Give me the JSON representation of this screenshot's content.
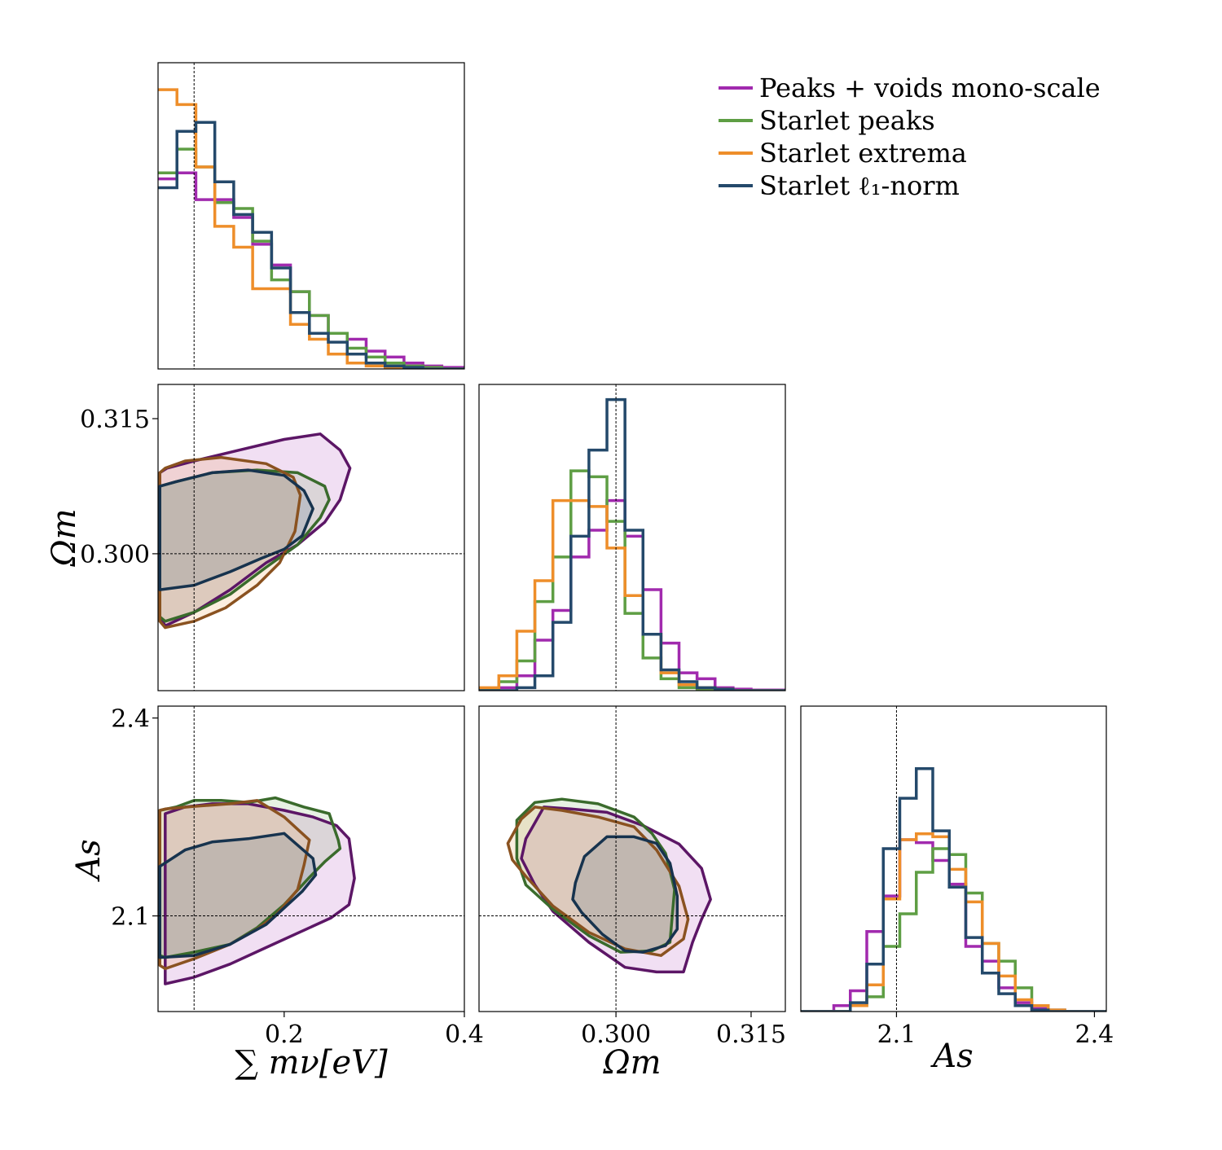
{
  "legend": {
    "items": [
      {
        "label": "Peaks + voids mono-scale",
        "color": "#a12aae"
      },
      {
        "label": "Starlet peaks",
        "color": "#5e9e44"
      },
      {
        "label": "Starlet extrema",
        "color": "#ee8e2a"
      },
      {
        "label": "Starlet ℓ₁-norm",
        "color": "#24496b"
      }
    ]
  },
  "chart_data": {
    "type": "corner",
    "axes": {
      "mnu": {
        "range": [
          0.06,
          0.4
        ],
        "ticks": [
          {
            "v": 0.2,
            "label": "0.2"
          },
          {
            "v": 0.4,
            "label": "0.4"
          }
        ],
        "truth": 0.1,
        "label": "∑ mν[eV]"
      },
      "om": {
        "range": [
          0.2848,
          0.3188
        ],
        "ticks": [
          {
            "v": 0.3,
            "label": "0.300"
          },
          {
            "v": 0.315,
            "label": "0.315"
          }
        ],
        "truth": 0.3,
        "label": "Ωm"
      },
      "as": {
        "range": [
          1.955,
          2.418
        ],
        "ticks": [
          {
            "v": 2.1,
            "label": "2.1"
          },
          {
            "v": 2.4,
            "label": "2.4"
          }
        ],
        "truth": 2.1,
        "label": "As"
      }
    },
    "contour_colors": {
      "Peaks + voids mono-scale": {
        "line": "#5c1666",
        "fill": "#a12aae"
      },
      "Starlet peaks": {
        "line": "#3a6b2c",
        "fill": "#5e9e44"
      },
      "Starlet extrema": {
        "line": "#8a5220",
        "fill": "#ee8e2a"
      },
      "Starlet ℓ₁-norm": {
        "line": "#17334e",
        "fill": "#24496b"
      }
    },
    "hist_mnu": {
      "edges": [
        0.06,
        0.081,
        0.102,
        0.123,
        0.144,
        0.165,
        0.186,
        0.207,
        0.228,
        0.249,
        0.27,
        0.291,
        0.312,
        0.333,
        0.354,
        0.375,
        0.4
      ],
      "series": [
        {
          "name": "Peaks + voids mono-scale",
          "values": [
            0.64,
            0.66,
            0.57,
            0.57,
            0.51,
            0.42,
            0.35,
            0.26,
            0.18,
            0.12,
            0.1,
            0.06,
            0.04,
            0.02,
            0.01,
            0.005
          ]
        },
        {
          "name": "Starlet peaks",
          "values": [
            0.66,
            0.74,
            0.68,
            0.56,
            0.54,
            0.43,
            0.3,
            0.26,
            0.18,
            0.12,
            0.07,
            0.04,
            0.02,
            0.01,
            0.005,
            0.0
          ]
        },
        {
          "name": "Starlet extrema",
          "values": [
            0.94,
            0.89,
            0.68,
            0.48,
            0.41,
            0.27,
            0.27,
            0.15,
            0.1,
            0.05,
            0.02,
            0.01,
            0.005,
            0.0,
            0.0,
            0.0
          ]
        },
        {
          "name": "Starlet ℓ₁-norm",
          "values": [
            0.61,
            0.8,
            0.83,
            0.63,
            0.52,
            0.46,
            0.34,
            0.19,
            0.12,
            0.09,
            0.05,
            0.02,
            0.01,
            0.005,
            0.0,
            0.0
          ]
        }
      ]
    },
    "hist_om": {
      "edges": [
        0.2848,
        0.287,
        0.289,
        0.291,
        0.293,
        0.295,
        0.297,
        0.299,
        0.301,
        0.303,
        0.305,
        0.307,
        0.309,
        0.311,
        0.313,
        0.315,
        0.3188
      ],
      "series": [
        {
          "name": "Peaks + voids mono-scale",
          "values": [
            0.005,
            0.01,
            0.05,
            0.17,
            0.27,
            0.45,
            0.54,
            0.64,
            0.52,
            0.34,
            0.16,
            0.06,
            0.04,
            0.01,
            0.005,
            0.002
          ]
        },
        {
          "name": "Starlet peaks",
          "values": [
            0.005,
            0.03,
            0.1,
            0.3,
            0.45,
            0.74,
            0.72,
            0.57,
            0.26,
            0.11,
            0.04,
            0.01,
            0.005,
            0.002,
            0.0,
            0.0
          ]
        },
        {
          "name": "Starlet extrema",
          "values": [
            0.01,
            0.05,
            0.2,
            0.37,
            0.64,
            0.64,
            0.62,
            0.48,
            0.32,
            0.19,
            0.06,
            0.02,
            0.01,
            0.005,
            0.0,
            0.0
          ]
        },
        {
          "name": "Starlet ℓ₁-norm",
          "values": [
            0.0,
            0.0,
            0.01,
            0.05,
            0.23,
            0.52,
            0.81,
            0.98,
            0.54,
            0.19,
            0.07,
            0.03,
            0.01,
            0.005,
            0.0,
            0.0
          ]
        }
      ]
    },
    "hist_as": {
      "edges": [
        1.955,
        1.98,
        2.005,
        2.03,
        2.055,
        2.08,
        2.105,
        2.13,
        2.155,
        2.18,
        2.205,
        2.23,
        2.255,
        2.28,
        2.305,
        2.33,
        2.355,
        2.418
      ],
      "series": [
        {
          "name": "Peaks + voids mono-scale",
          "values": [
            0.0,
            0.0,
            0.02,
            0.07,
            0.27,
            0.39,
            0.58,
            0.57,
            0.51,
            0.43,
            0.22,
            0.17,
            0.08,
            0.03,
            0.01,
            0.005,
            0.0
          ]
        },
        {
          "name": "Starlet peaks",
          "values": [
            0.0,
            0.0,
            0.0,
            0.02,
            0.05,
            0.22,
            0.33,
            0.47,
            0.55,
            0.53,
            0.4,
            0.23,
            0.17,
            0.08,
            0.02,
            0.005,
            0.0
          ]
        },
        {
          "name": "Starlet extrema",
          "values": [
            0.0,
            0.0,
            0.0,
            0.02,
            0.09,
            0.38,
            0.58,
            0.6,
            0.59,
            0.48,
            0.37,
            0.23,
            0.12,
            0.04,
            0.02,
            0.005,
            0.0
          ]
        },
        {
          "name": "Starlet ℓ₁-norm",
          "values": [
            0.0,
            0.0,
            0.0,
            0.03,
            0.16,
            0.55,
            0.72,
            0.82,
            0.61,
            0.42,
            0.25,
            0.13,
            0.06,
            0.02,
            0.005,
            0.0,
            0.0
          ]
        }
      ]
    },
    "contours_mnu_om": [
      {
        "name": "Peaks + voids mono-scale",
        "points": [
          [
            0.068,
            0.292
          ],
          [
            0.1,
            0.2935
          ],
          [
            0.14,
            0.296
          ],
          [
            0.18,
            0.299
          ],
          [
            0.215,
            0.301
          ],
          [
            0.245,
            0.3035
          ],
          [
            0.262,
            0.306
          ],
          [
            0.273,
            0.3095
          ],
          [
            0.262,
            0.3115
          ],
          [
            0.24,
            0.3133
          ],
          [
            0.2,
            0.3127
          ],
          [
            0.15,
            0.3115
          ],
          [
            0.1,
            0.3103
          ],
          [
            0.07,
            0.3095
          ],
          [
            0.062,
            0.309
          ],
          [
            0.062,
            0.293
          ]
        ]
      },
      {
        "name": "Starlet peaks",
        "points": [
          [
            0.068,
            0.2925
          ],
          [
            0.1,
            0.2935
          ],
          [
            0.14,
            0.2955
          ],
          [
            0.18,
            0.2985
          ],
          [
            0.215,
            0.301
          ],
          [
            0.24,
            0.304
          ],
          [
            0.25,
            0.306
          ],
          [
            0.245,
            0.3075
          ],
          [
            0.215,
            0.309
          ],
          [
            0.17,
            0.3093
          ],
          [
            0.12,
            0.309
          ],
          [
            0.08,
            0.308
          ],
          [
            0.062,
            0.3075
          ],
          [
            0.062,
            0.293
          ]
        ]
      },
      {
        "name": "Starlet extrema",
        "points": [
          [
            0.068,
            0.2918
          ],
          [
            0.1,
            0.2925
          ],
          [
            0.135,
            0.294
          ],
          [
            0.17,
            0.2965
          ],
          [
            0.195,
            0.299
          ],
          [
            0.212,
            0.3025
          ],
          [
            0.218,
            0.3065
          ],
          [
            0.21,
            0.3085
          ],
          [
            0.18,
            0.31
          ],
          [
            0.13,
            0.3107
          ],
          [
            0.09,
            0.3103
          ],
          [
            0.068,
            0.3095
          ],
          [
            0.062,
            0.309
          ],
          [
            0.062,
            0.2925
          ]
        ]
      },
      {
        "name": "Starlet ℓ₁-norm",
        "points": [
          [
            0.062,
            0.296
          ],
          [
            0.1,
            0.2965
          ],
          [
            0.14,
            0.298
          ],
          [
            0.175,
            0.2995
          ],
          [
            0.2,
            0.3005
          ],
          [
            0.22,
            0.302
          ],
          [
            0.232,
            0.305
          ],
          [
            0.222,
            0.307
          ],
          [
            0.2,
            0.3087
          ],
          [
            0.16,
            0.3093
          ],
          [
            0.12,
            0.309
          ],
          [
            0.08,
            0.308
          ],
          [
            0.062,
            0.3075
          ],
          [
            0.062,
            0.296
          ]
        ]
      }
    ],
    "contours_mnu_as": [
      {
        "name": "Peaks + voids mono-scale",
        "points": [
          [
            0.068,
            1.997
          ],
          [
            0.1,
            2.007
          ],
          [
            0.14,
            2.027
          ],
          [
            0.18,
            2.052
          ],
          [
            0.22,
            2.077
          ],
          [
            0.252,
            2.097
          ],
          [
            0.272,
            2.117
          ],
          [
            0.278,
            2.157
          ],
          [
            0.272,
            2.217
          ],
          [
            0.258,
            2.237
          ],
          [
            0.232,
            2.25
          ],
          [
            0.2,
            2.26
          ],
          [
            0.16,
            2.27
          ],
          [
            0.12,
            2.27
          ],
          [
            0.09,
            2.265
          ],
          [
            0.068,
            2.255
          ]
        ]
      },
      {
        "name": "Starlet peaks",
        "points": [
          [
            0.068,
            2.037
          ],
          [
            0.1,
            2.045
          ],
          [
            0.14,
            2.057
          ],
          [
            0.17,
            2.082
          ],
          [
            0.2,
            2.117
          ],
          [
            0.227,
            2.157
          ],
          [
            0.245,
            2.182
          ],
          [
            0.262,
            2.202
          ],
          [
            0.26,
            2.215
          ],
          [
            0.25,
            2.255
          ],
          [
            0.222,
            2.265
          ],
          [
            0.19,
            2.279
          ],
          [
            0.16,
            2.272
          ],
          [
            0.13,
            2.275
          ],
          [
            0.1,
            2.275
          ],
          [
            0.08,
            2.265
          ],
          [
            0.062,
            2.26
          ],
          [
            0.062,
            2.04
          ]
        ]
      },
      {
        "name": "Starlet extrema",
        "points": [
          [
            0.068,
            2.02
          ],
          [
            0.1,
            2.035
          ],
          [
            0.14,
            2.057
          ],
          [
            0.17,
            2.08
          ],
          [
            0.19,
            2.1
          ],
          [
            0.215,
            2.14
          ],
          [
            0.222,
            2.177
          ],
          [
            0.228,
            2.215
          ],
          [
            0.2,
            2.25
          ],
          [
            0.17,
            2.275
          ],
          [
            0.14,
            2.27
          ],
          [
            0.1,
            2.266
          ],
          [
            0.068,
            2.262
          ],
          [
            0.062,
            2.26
          ],
          [
            0.062,
            2.025
          ]
        ]
      },
      {
        "name": "Starlet ℓ₁-norm",
        "points": [
          [
            0.062,
            2.037
          ],
          [
            0.1,
            2.04
          ],
          [
            0.14,
            2.057
          ],
          [
            0.18,
            2.087
          ],
          [
            0.2,
            2.112
          ],
          [
            0.22,
            2.137
          ],
          [
            0.235,
            2.162
          ],
          [
            0.232,
            2.187
          ],
          [
            0.2,
            2.225
          ],
          [
            0.16,
            2.217
          ],
          [
            0.12,
            2.212
          ],
          [
            0.09,
            2.2
          ],
          [
            0.062,
            2.175
          ],
          [
            0.062,
            2.037
          ]
        ]
      }
    ],
    "contours_om_as": [
      {
        "name": "Peaks + voids mono-scale",
        "points": [
          [
            0.29,
            2.217
          ],
          [
            0.292,
            2.265
          ],
          [
            0.295,
            2.262
          ],
          [
            0.299,
            2.257
          ],
          [
            0.303,
            2.237
          ],
          [
            0.307,
            2.209
          ],
          [
            0.3095,
            2.172
          ],
          [
            0.3105,
            2.125
          ],
          [
            0.3095,
            2.095
          ],
          [
            0.3085,
            2.06
          ],
          [
            0.3075,
            2.015
          ],
          [
            0.3045,
            2.015
          ],
          [
            0.301,
            2.022
          ],
          [
            0.297,
            2.06
          ],
          [
            0.293,
            2.107
          ],
          [
            0.291,
            2.147
          ],
          [
            0.2895,
            2.187
          ]
        ]
      },
      {
        "name": "Starlet peaks",
        "points": [
          [
            0.289,
            2.245
          ],
          [
            0.291,
            2.272
          ],
          [
            0.294,
            2.277
          ],
          [
            0.298,
            2.27
          ],
          [
            0.302,
            2.25
          ],
          [
            0.304,
            2.225
          ],
          [
            0.3055,
            2.195
          ],
          [
            0.3065,
            2.14
          ],
          [
            0.306,
            2.06
          ],
          [
            0.304,
            2.047
          ],
          [
            0.3005,
            2.045
          ],
          [
            0.297,
            2.07
          ],
          [
            0.293,
            2.11
          ],
          [
            0.29,
            2.147
          ],
          [
            0.289,
            2.187
          ]
        ]
      },
      {
        "name": "Starlet extrema",
        "points": [
          [
            0.288,
            2.21
          ],
          [
            0.2895,
            2.247
          ],
          [
            0.291,
            2.265
          ],
          [
            0.294,
            2.26
          ],
          [
            0.298,
            2.25
          ],
          [
            0.302,
            2.235
          ],
          [
            0.3045,
            2.2
          ],
          [
            0.307,
            2.145
          ],
          [
            0.308,
            2.095
          ],
          [
            0.3075,
            2.065
          ],
          [
            0.305,
            2.04
          ],
          [
            0.301,
            2.05
          ],
          [
            0.297,
            2.075
          ],
          [
            0.293,
            2.115
          ],
          [
            0.29,
            2.16
          ],
          [
            0.2885,
            2.185
          ]
        ]
      },
      {
        "name": "Starlet ℓ₁-norm",
        "points": [
          [
            0.2955,
            2.15
          ],
          [
            0.2965,
            2.19
          ],
          [
            0.299,
            2.22
          ],
          [
            0.302,
            2.22
          ],
          [
            0.3045,
            2.21
          ],
          [
            0.306,
            2.18
          ],
          [
            0.3068,
            2.13
          ],
          [
            0.3068,
            2.08
          ],
          [
            0.3055,
            2.055
          ],
          [
            0.303,
            2.045
          ],
          [
            0.301,
            2.047
          ],
          [
            0.2985,
            2.072
          ],
          [
            0.2962,
            2.105
          ],
          [
            0.2952,
            2.125
          ]
        ]
      }
    ]
  }
}
